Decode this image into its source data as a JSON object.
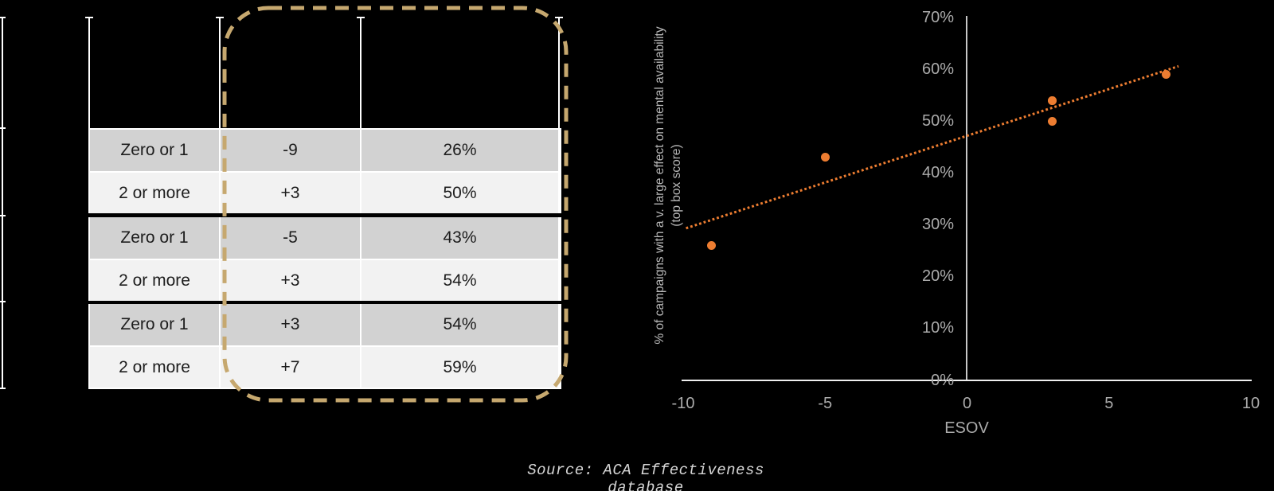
{
  "table": {
    "rows": [
      [
        "Zero or 1",
        "-9",
        "26%"
      ],
      [
        "2 or more",
        "+3",
        "50%"
      ],
      [
        "Zero or 1",
        "-5",
        "43%"
      ],
      [
        "2 or more",
        "+3",
        "54%"
      ],
      [
        "Zero or 1",
        "+3",
        "54%"
      ],
      [
        "2 or more",
        "+7",
        "59%"
      ]
    ],
    "row_shades": [
      "dark",
      "light",
      "dark",
      "light",
      "dark",
      "light"
    ],
    "group_divider_after_rows": [
      2,
      4
    ]
  },
  "highlight_box": {
    "style": "dashed",
    "color": "#C6A86F"
  },
  "chart_data": {
    "type": "scatter",
    "xlabel": "ESOV",
    "ylabel_lines": [
      "% of campaigns with a v. large effect on mental availability",
      "(top box score)"
    ],
    "xlim": [
      -10,
      10
    ],
    "ylim_pct": [
      0,
      70
    ],
    "grid": false,
    "legend": "none",
    "marker_color": "#ED7D31",
    "trend_color": "#ED7D31",
    "x_ticks": [
      {
        "v": -10,
        "label": "-10"
      },
      {
        "v": -5,
        "label": "-5"
      },
      {
        "v": 0,
        "label": "0"
      },
      {
        "v": 5,
        "label": "5"
      },
      {
        "v": 10,
        "label": "10"
      }
    ],
    "y_ticks": [
      {
        "v": 70,
        "label": "70%"
      },
      {
        "v": 60,
        "label": "60%"
      },
      {
        "v": 50,
        "label": "50%"
      },
      {
        "v": 40,
        "label": "40%"
      },
      {
        "v": 30,
        "label": "30%"
      },
      {
        "v": 20,
        "label": "20%"
      },
      {
        "v": 10,
        "label": "10%"
      },
      {
        "v": 0,
        "label": "0%"
      }
    ],
    "points": [
      {
        "x": -9,
        "y_pct": 26
      },
      {
        "x": 3,
        "y_pct": 50
      },
      {
        "x": -5,
        "y_pct": 43
      },
      {
        "x": 3,
        "y_pct": 54
      },
      {
        "x": 3,
        "y_pct": 54
      },
      {
        "x": 7,
        "y_pct": 59
      }
    ],
    "trendline": {
      "style": "dotted",
      "x1": -9.9,
      "y1_pct": 29.3,
      "x2": 7.45,
      "y2_pct": 60.6
    }
  },
  "source_note": "Source: ACA Effectiveness database"
}
